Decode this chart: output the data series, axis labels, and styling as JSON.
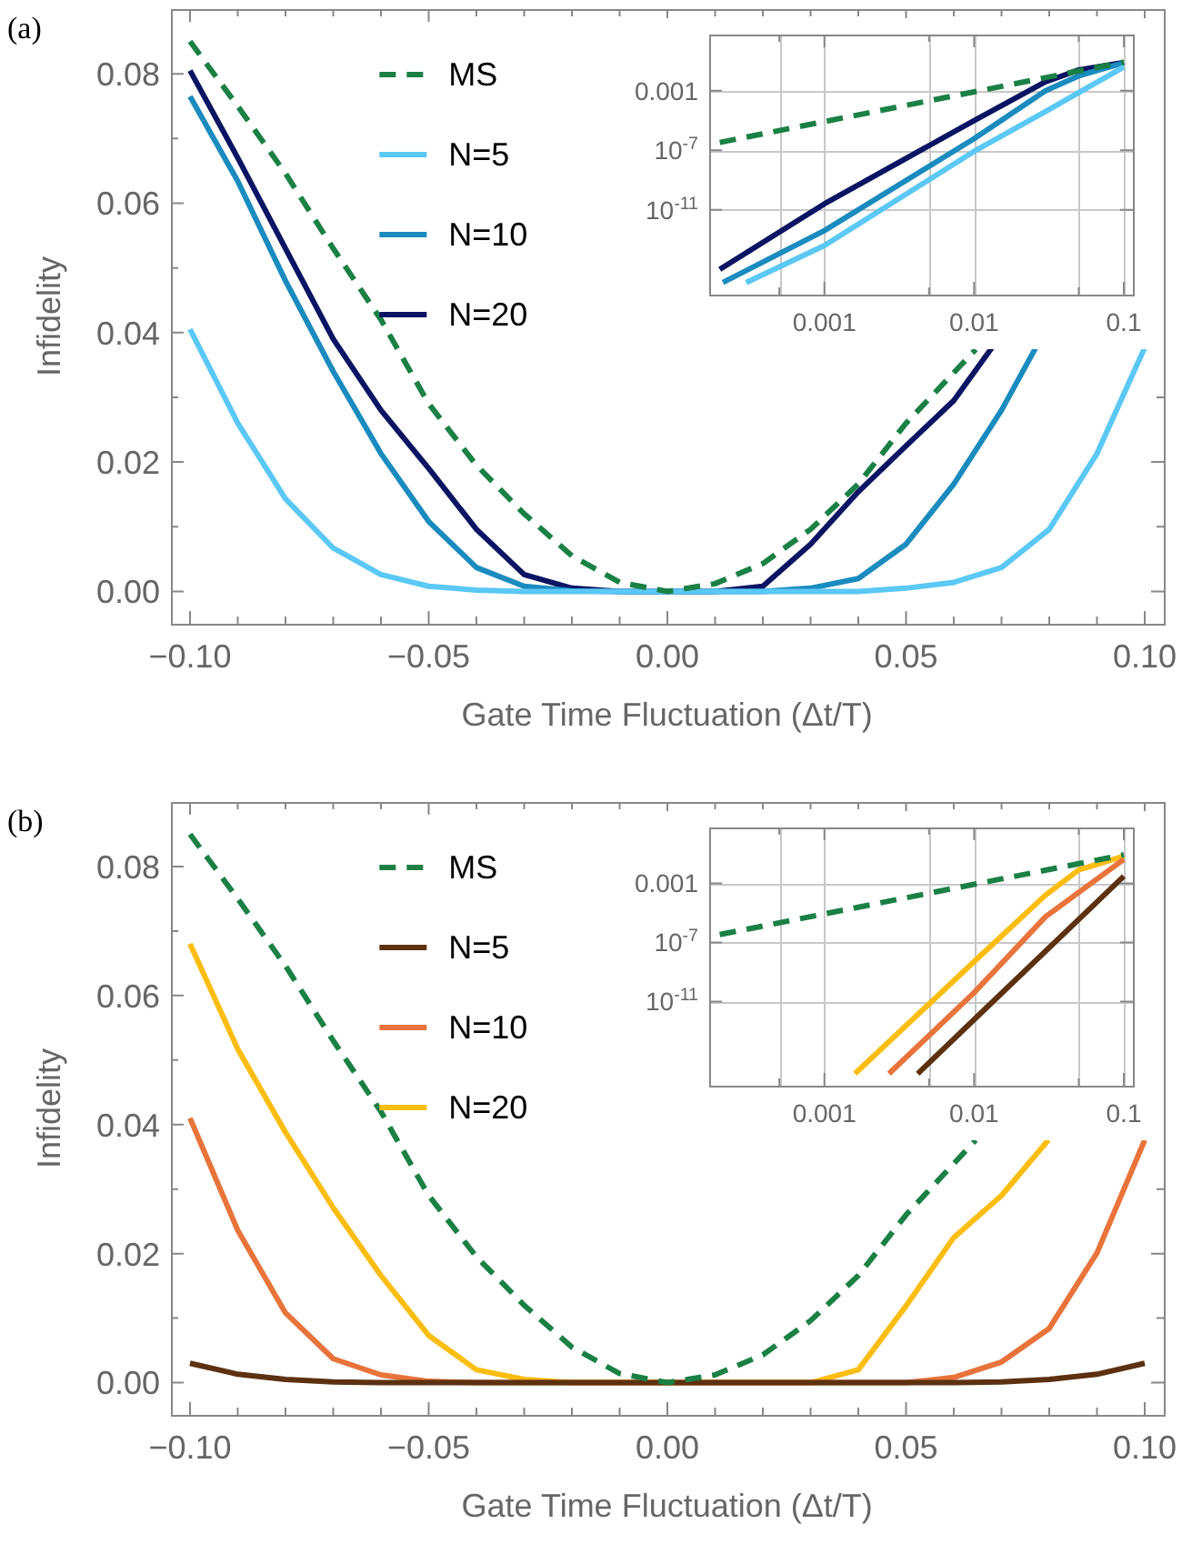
{
  "chart_data": [
    {
      "type": "line",
      "annotations": [
        "(a)"
      ],
      "xlabel": "Gate Time Fluctuation (Δt/T)",
      "ylabel": "Infidelity",
      "xlim": [
        -0.104,
        0.104
      ],
      "ylim": [
        -0.005,
        0.09
      ],
      "xticks": [
        {
          "value": -0.1,
          "label": "−0.10"
        },
        {
          "value": -0.09,
          "label": null
        },
        {
          "value": -0.08,
          "label": null
        },
        {
          "value": -0.07,
          "label": null
        },
        {
          "value": -0.06,
          "label": null
        },
        {
          "value": -0.05,
          "label": "−0.05"
        },
        {
          "value": -0.04,
          "label": null
        },
        {
          "value": -0.03,
          "label": null
        },
        {
          "value": -0.02,
          "label": null
        },
        {
          "value": -0.01,
          "label": null
        },
        {
          "value": 0,
          "label": "0.00"
        },
        {
          "value": 0.01,
          "label": null
        },
        {
          "value": 0.02,
          "label": null
        },
        {
          "value": 0.03,
          "label": null
        },
        {
          "value": 0.04,
          "label": null
        },
        {
          "value": 0.05,
          "label": "0.05"
        },
        {
          "value": 0.06,
          "label": null
        },
        {
          "value": 0.07,
          "label": null
        },
        {
          "value": 0.08,
          "label": null
        },
        {
          "value": 0.09,
          "label": null
        },
        {
          "value": 0.1,
          "label": "0.10"
        }
      ],
      "yticks": [
        {
          "value": 0,
          "label": "0.00"
        },
        {
          "value": 0.01,
          "label": null
        },
        {
          "value": 0.02,
          "label": "0.02"
        },
        {
          "value": 0.03,
          "label": null
        },
        {
          "value": 0.04,
          "label": "0.04"
        },
        {
          "value": 0.05,
          "label": null
        },
        {
          "value": 0.06,
          "label": "0.06"
        },
        {
          "value": 0.07,
          "label": null
        },
        {
          "value": 0.08,
          "label": "0.08"
        }
      ],
      "grid": false,
      "legend": "top left",
      "series": [
        {
          "name": "MS",
          "color": "#1a8045",
          "line_style": "dashed",
          "x": [
            -0.1,
            -0.09,
            -0.08,
            -0.07,
            -0.06,
            -0.05,
            -0.04,
            -0.03,
            -0.02,
            -0.01,
            0,
            0.01,
            0.02,
            0.03,
            0.04,
            0.05,
            0.0646
          ],
          "values": [
            0.085,
            0.075,
            0.0646,
            0.053,
            0.042,
            0.029,
            0.0195,
            0.012,
            0.0055,
            0.0014,
            0,
            0.0012,
            0.0043,
            0.0096,
            0.0166,
            0.026,
            0.0374
          ]
        },
        {
          "name": "N=5",
          "color": "#5bc8f5",
          "line_style": "solid",
          "x": [
            -0.1,
            -0.09,
            -0.08,
            -0.07,
            -0.06,
            -0.05,
            -0.04,
            -0.03,
            -0.02,
            -0.01,
            0,
            0.01,
            0.02,
            0.03,
            0.04,
            0.05,
            0.06,
            0.07,
            0.08,
            0.09,
            0.1
          ],
          "values": [
            0.0405,
            0.026,
            0.0143,
            0.0067,
            0.0026,
            0.0008,
            0.0002,
            0,
            0,
            0,
            0,
            0,
            0,
            0,
            0,
            0.0005,
            0.0014,
            0.0037,
            0.0096,
            0.0213,
            0.0377
          ]
        },
        {
          "name": "N=10",
          "color": "#1a8bbf",
          "line_style": "solid",
          "x": [
            -0.1,
            -0.09,
            -0.08,
            -0.07,
            -0.06,
            -0.05,
            -0.04,
            -0.03,
            -0.02,
            -0.01,
            0,
            0.01,
            0.02,
            0.03,
            0.04,
            0.05,
            0.06,
            0.07,
            0.0772
          ],
          "values": [
            0.0765,
            0.0634,
            0.048,
            0.034,
            0.0213,
            0.0108,
            0.0037,
            0.0008,
            0.0001,
            0,
            0,
            0,
            0,
            0.0005,
            0.002,
            0.0073,
            0.0166,
            0.028,
            0.0377
          ]
        },
        {
          "name": "N=20",
          "color": "#0b1463",
          "line_style": "solid",
          "x": [
            -0.1,
            -0.09,
            -0.08,
            -0.07,
            -0.06,
            -0.05,
            -0.04,
            -0.03,
            -0.02,
            -0.01,
            0,
            0.01,
            0.02,
            0.03,
            0.04,
            0.05,
            0.06,
            0.068
          ],
          "values": [
            0.0805,
            0.067,
            0.053,
            0.039,
            0.028,
            0.019,
            0.0096,
            0.0026,
            0.0005,
            0,
            0,
            0,
            0.0008,
            0.0073,
            0.0154,
            0.0225,
            0.0295,
            0.0377
          ]
        }
      ]
    },
    {
      "type": "line",
      "log": "xy",
      "xlim": [
        0.00017,
        0.115
      ],
      "ylim": [
        2e-17,
        6
      ],
      "xticks": [
        {
          "value": 0.0005,
          "label": null
        },
        {
          "value": 0.001,
          "label": "0.001"
        },
        {
          "value": 0.005,
          "label": null
        },
        {
          "value": 0.01,
          "label": "0.01"
        },
        {
          "value": 0.05,
          "label": null
        },
        {
          "value": 0.1,
          "label": "0.1"
        }
      ],
      "yticks": [
        {
          "value": 1e-11,
          "label": "10$^{-11}$"
        },
        {
          "value": 1e-07,
          "label": "10$^{-7}$"
        },
        {
          "value": 0.001,
          "label": "0.001"
        }
      ],
      "grid": true,
      "series": [
        {
          "color": "#1a8045",
          "line_style": "dashed",
          "x": [
            0.0002,
            0.001,
            0.01,
            0.1
          ],
          "values": [
            3.4e-07,
            8.5e-06,
            0.00085,
            0.085
          ]
        },
        {
          "color": "#5bc8f5",
          "line_style": "solid",
          "x": [
            0.0003,
            0.001,
            0.01,
            0.03,
            0.1
          ],
          "values": [
            1.3e-16,
            4e-14,
            8.5e-08,
            4e-05,
            0.04
          ]
        },
        {
          "color": "#1a8bbf",
          "line_style": "solid",
          "x": [
            0.00021,
            0.001,
            0.01,
            0.03,
            0.05,
            0.1
          ],
          "values": [
            1.3e-16,
            4e-13,
            6e-07,
            0.001,
            0.01,
            0.076
          ]
        },
        {
          "color": "#0b1463",
          "line_style": "solid",
          "x": [
            0.0002,
            0.001,
            0.01,
            0.03,
            0.05,
            0.1
          ],
          "values": [
            1e-15,
            2.5e-11,
            1e-05,
            0.004,
            0.025,
            0.08
          ]
        }
      ]
    },
    {
      "type": "line",
      "annotations": [
        "(b)"
      ],
      "xlabel": "Gate Time Fluctuation (Δt/T)",
      "ylabel": "Infidelity",
      "xlim": [
        -0.104,
        0.104
      ],
      "ylim": [
        -0.005,
        0.09
      ],
      "xticks": [
        {
          "value": -0.1,
          "label": "−0.10"
        },
        {
          "value": -0.09,
          "label": null
        },
        {
          "value": -0.08,
          "label": null
        },
        {
          "value": -0.07,
          "label": null
        },
        {
          "value": -0.06,
          "label": null
        },
        {
          "value": -0.05,
          "label": "−0.05"
        },
        {
          "value": -0.04,
          "label": null
        },
        {
          "value": -0.03,
          "label": null
        },
        {
          "value": -0.02,
          "label": null
        },
        {
          "value": -0.01,
          "label": null
        },
        {
          "value": 0,
          "label": "0.00"
        },
        {
          "value": 0.01,
          "label": null
        },
        {
          "value": 0.02,
          "label": null
        },
        {
          "value": 0.03,
          "label": null
        },
        {
          "value": 0.04,
          "label": null
        },
        {
          "value": 0.05,
          "label": "0.05"
        },
        {
          "value": 0.06,
          "label": null
        },
        {
          "value": 0.07,
          "label": null
        },
        {
          "value": 0.08,
          "label": null
        },
        {
          "value": 0.09,
          "label": null
        },
        {
          "value": 0.1,
          "label": "0.10"
        }
      ],
      "yticks": [
        {
          "value": 0,
          "label": "0.00"
        },
        {
          "value": 0.01,
          "label": null
        },
        {
          "value": 0.02,
          "label": "0.02"
        },
        {
          "value": 0.03,
          "label": null
        },
        {
          "value": 0.04,
          "label": "0.04"
        },
        {
          "value": 0.05,
          "label": null
        },
        {
          "value": 0.06,
          "label": "0.06"
        },
        {
          "value": 0.07,
          "label": null
        },
        {
          "value": 0.08,
          "label": "0.08"
        }
      ],
      "grid": false,
      "legend": "top left",
      "series": [
        {
          "name": "MS",
          "color": "#1a8045",
          "line_style": "dashed",
          "x": [
            -0.1,
            -0.09,
            -0.08,
            -0.07,
            -0.06,
            -0.05,
            -0.04,
            -0.03,
            -0.02,
            -0.01,
            0,
            0.01,
            0.02,
            0.03,
            0.04,
            0.05,
            0.0646
          ],
          "values": [
            0.085,
            0.075,
            0.0646,
            0.053,
            0.042,
            0.029,
            0.0195,
            0.012,
            0.0055,
            0.0014,
            0,
            0.0012,
            0.0043,
            0.0096,
            0.0166,
            0.026,
            0.0376
          ]
        },
        {
          "name": "N=5",
          "color": "#5c3110",
          "line_style": "solid",
          "x": [
            -0.1,
            -0.09,
            -0.08,
            -0.07,
            -0.06,
            -0.05,
            0,
            0.05,
            0.06,
            0.07,
            0.08,
            0.09,
            0.1
          ],
          "values": [
            0.003,
            0.0013,
            0.0005,
            0.0001,
            0,
            0,
            0,
            0,
            0,
            0.0001,
            0.0005,
            0.0013,
            0.003
          ]
        },
        {
          "name": "N=10",
          "color": "#e8743b",
          "line_style": "solid",
          "x": [
            -0.1,
            -0.09,
            -0.08,
            -0.07,
            -0.06,
            -0.05,
            -0.04,
            0,
            0.05,
            0.06,
            0.07,
            0.08,
            0.09,
            0.1
          ],
          "values": [
            0.041,
            0.0236,
            0.0108,
            0.0037,
            0.0012,
            0.0002,
            0,
            0,
            0,
            0.0008,
            0.0032,
            0.0084,
            0.0201,
            0.0376
          ]
        },
        {
          "name": "N=20",
          "color": "#fbbd10",
          "line_style": "solid",
          "x": [
            -0.1,
            -0.09,
            -0.08,
            -0.07,
            -0.06,
            -0.05,
            -0.04,
            -0.03,
            -0.02,
            0,
            0.03,
            0.04,
            0.05,
            0.06,
            0.07,
            0.0798
          ],
          "values": [
            0.068,
            0.0517,
            0.0388,
            0.0271,
            0.0166,
            0.0073,
            0.002,
            0.0005,
            0,
            0,
            0,
            0.002,
            0.0119,
            0.0225,
            0.029,
            0.0376
          ]
        }
      ]
    },
    {
      "type": "line",
      "log": "xy",
      "xlim": [
        0.00017,
        0.115
      ],
      "ylim": [
        2e-17,
        6
      ],
      "xticks": [
        {
          "value": 0.0005,
          "label": null
        },
        {
          "value": 0.001,
          "label": "0.001"
        },
        {
          "value": 0.005,
          "label": null
        },
        {
          "value": 0.01,
          "label": "0.01"
        },
        {
          "value": 0.05,
          "label": null
        },
        {
          "value": 0.1,
          "label": "0.1"
        }
      ],
      "yticks": [
        {
          "value": 1e-11,
          "label": "10$^{-11}$"
        },
        {
          "value": 1e-07,
          "label": "10$^{-7}$"
        },
        {
          "value": 0.001,
          "label": "0.001"
        }
      ],
      "grid": true,
      "series": [
        {
          "color": "#1a8045",
          "line_style": "dashed",
          "x": [
            0.0002,
            0.001,
            0.01,
            0.1
          ],
          "values": [
            3.4e-07,
            8.5e-06,
            0.00085,
            0.085
          ]
        },
        {
          "color": "#5c3110",
          "line_style": "solid",
          "x": [
            0.0042,
            0.01,
            0.1
          ],
          "values": [
            1.3e-16,
            6e-13,
            0.003
          ]
        },
        {
          "color": "#e8743b",
          "line_style": "solid",
          "x": [
            0.0027,
            0.01,
            0.03,
            0.1
          ],
          "values": [
            1.3e-16,
            4e-11,
            5.5e-06,
            0.041
          ]
        },
        {
          "color": "#fbbd10",
          "line_style": "solid",
          "x": [
            0.0016,
            0.01,
            0.03,
            0.05,
            0.1
          ],
          "values": [
            1.3e-16,
            5e-09,
            0.00016,
            0.008,
            0.068
          ]
        }
      ]
    }
  ]
}
